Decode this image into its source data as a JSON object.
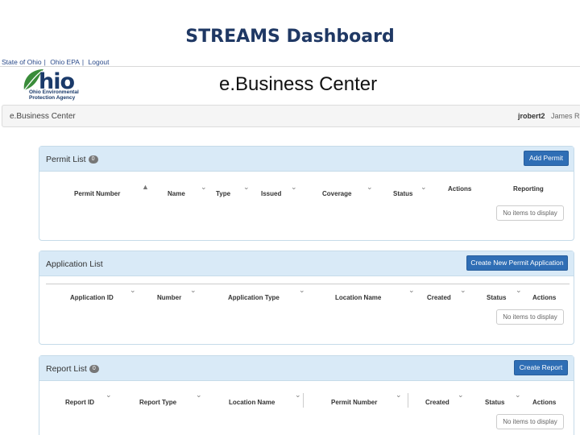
{
  "slide": {
    "title": "STREAMS Dashboard"
  },
  "top_links": [
    "State of Ohio",
    "Ohio EPA",
    "Logout"
  ],
  "logo": {
    "word": "hio",
    "agency_line1": "Ohio Environmental",
    "agency_line2": "Protection Agency"
  },
  "header": {
    "title": "e.Business Center"
  },
  "navbar": {
    "brand": "e.Business Center",
    "user": "jrobert2",
    "name": "James Rob"
  },
  "permit_list": {
    "title": "Permit List",
    "count": "0",
    "button": "Add Permit",
    "columns": [
      "Permit Number",
      "Name",
      "Type",
      "Issued",
      "Coverage",
      "Status",
      "Actions",
      "Reporting"
    ],
    "empty": "No items to display"
  },
  "application_list": {
    "title": "Application List",
    "button": "Create New Permit Application",
    "columns": [
      "Application ID",
      "Number",
      "Application Type",
      "Location Name",
      "Created",
      "Status",
      "Actions"
    ],
    "empty": "No items to display"
  },
  "report_list": {
    "title": "Report List",
    "count": "0",
    "button": "Create Report",
    "columns": [
      "Report ID",
      "Report Type",
      "Location Name",
      "Permit Number",
      "Created",
      "Status",
      "Actions"
    ],
    "empty": "No items to display"
  },
  "colors": {
    "panel_header": "#d9eaf7",
    "button": "#2f6eb5",
    "title": "#1f3864"
  }
}
